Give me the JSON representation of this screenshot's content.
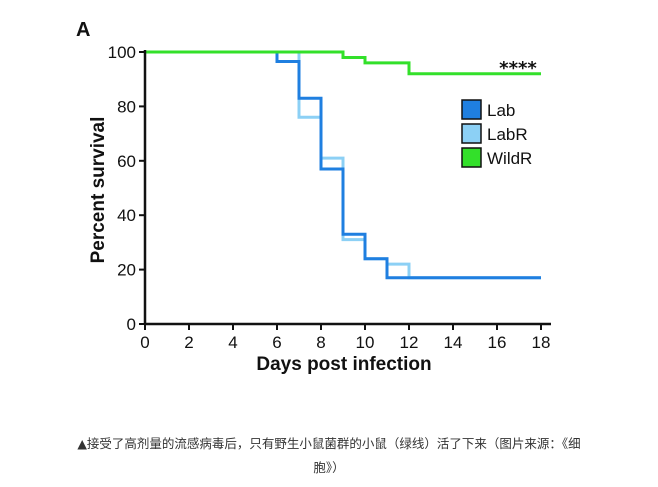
{
  "chart_data": {
    "type": "line",
    "step": true,
    "panel_label": "A",
    "title": "",
    "xlabel": "Days post infection",
    "ylabel": "Percent survival",
    "xlim": [
      0,
      18
    ],
    "ylim": [
      0,
      100
    ],
    "xticks": [
      0,
      2,
      4,
      6,
      8,
      10,
      12,
      14,
      16,
      18
    ],
    "yticks": [
      0,
      20,
      40,
      60,
      80,
      100
    ],
    "grid": false,
    "legend_position": "top-right",
    "annotation": "****",
    "series": [
      {
        "name": "Lab",
        "color": "#1f7fe0",
        "x": [
          0,
          6,
          7,
          8,
          9,
          10,
          11,
          18
        ],
        "y": [
          100,
          96.5,
          83,
          57,
          33,
          24,
          17,
          17
        ]
      },
      {
        "name": "LabR",
        "color": "#8cd0f5",
        "x": [
          0,
          7,
          8,
          9,
          10,
          11,
          12,
          18
        ],
        "y": [
          100,
          76,
          61,
          31,
          24,
          22,
          17,
          17
        ]
      },
      {
        "name": "WildR",
        "color": "#33e02a",
        "x": [
          0,
          9,
          10,
          12,
          18
        ],
        "y": [
          100,
          98,
          96,
          92,
          92
        ]
      }
    ]
  },
  "caption": {
    "line1": "▲接受了高剂量的流感病毒后，只有野生小鼠菌群的小鼠（绿线）活了下来（图片来源：《细",
    "line2": "胞》）"
  }
}
